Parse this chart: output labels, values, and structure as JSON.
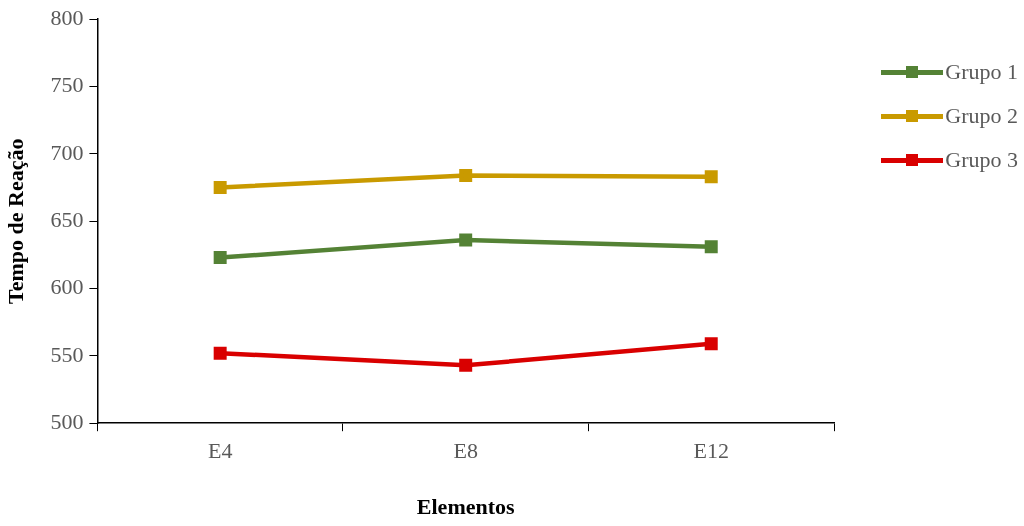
{
  "chart_data": {
    "type": "line",
    "xlabel": "Elementos",
    "ylabel": "Tempo de Reação",
    "categories": [
      "E4",
      "E8",
      "E12"
    ],
    "series": [
      {
        "name": "Grupo 1",
        "color": "#548235",
        "values": [
          623,
          636,
          631
        ]
      },
      {
        "name": "Grupo 2",
        "color": "#c99a00",
        "values": [
          675,
          684,
          683
        ]
      },
      {
        "name": "Grupo 3",
        "color": "#d90000",
        "values": [
          552,
          543,
          559
        ]
      }
    ],
    "ylim": [
      500,
      800
    ],
    "yticks": [
      500,
      550,
      600,
      650,
      700,
      750,
      800
    ],
    "legend": "top right",
    "marker": "square",
    "line_style": "solid"
  }
}
